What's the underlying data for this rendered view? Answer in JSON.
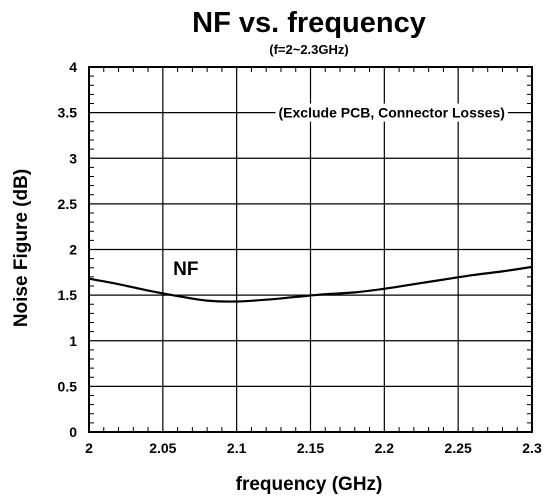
{
  "chart_data": {
    "type": "line",
    "title": "NF vs. frequency",
    "subtitle": "(f=2~2.3GHz)",
    "xlabel": "frequency (GHz)",
    "ylabel": "Noise Figure (dB)",
    "xlim": [
      2,
      2.3
    ],
    "ylim": [
      0,
      4
    ],
    "x_ticks": [
      2,
      2.05,
      2.1,
      2.15,
      2.2,
      2.25,
      2.3
    ],
    "x_tick_labels": [
      "2",
      "2.05",
      "2.1",
      "2.15",
      "2.2",
      "2.25",
      "2.3"
    ],
    "y_ticks": [
      0,
      0.5,
      1,
      1.5,
      2,
      2.5,
      3,
      3.5,
      4
    ],
    "y_tick_labels": [
      "0",
      "0.5",
      "1",
      "1.5",
      "2",
      "2.5",
      "3",
      "3.5",
      "4"
    ],
    "grid": true,
    "series": [
      {
        "name": "NF",
        "x": [
          2.0,
          2.02,
          2.04,
          2.06,
          2.08,
          2.1,
          2.12,
          2.14,
          2.16,
          2.18,
          2.2,
          2.22,
          2.24,
          2.26,
          2.28,
          2.3
        ],
        "values": [
          1.68,
          1.62,
          1.55,
          1.49,
          1.44,
          1.43,
          1.45,
          1.48,
          1.51,
          1.53,
          1.57,
          1.62,
          1.67,
          1.72,
          1.76,
          1.81
        ]
      }
    ],
    "annotations": [
      {
        "text": "(Exclude PCB, Connector Losses)",
        "x": 2.205,
        "y": 3.5
      }
    ],
    "series_label_position": {
      "x": 2.057,
      "y": 1.8
    }
  }
}
